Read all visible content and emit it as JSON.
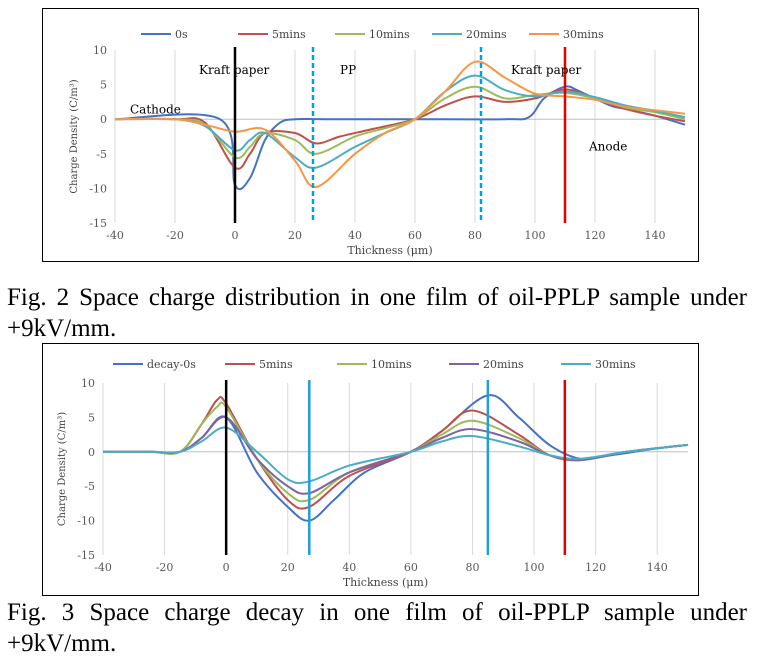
{
  "figure1": {
    "caption": "Fig. 2 Space charge distribution in one film of oil-PPLP sample under +9kV/mm.",
    "chart_data": {
      "type": "line",
      "xlabel": "Thickness (μm)",
      "ylabel": "Charge Density (C/m³)",
      "xlim": [
        -40,
        150
      ],
      "ylim": [
        -15,
        10
      ],
      "xticks": [
        -40,
        -20,
        0,
        20,
        40,
        60,
        80,
        100,
        120,
        140
      ],
      "yticks": [
        10,
        5,
        0,
        -5,
        -10,
        -15
      ],
      "grid": "vertical",
      "legend": "top",
      "series": [
        {
          "name": "0s",
          "color": "#4472C4",
          "points": [
            [
              -40,
              0
            ],
            [
              -5,
              0
            ],
            [
              0,
              -9.5
            ],
            [
              5,
              -8.5
            ],
            [
              10,
              -3
            ],
            [
              15,
              -0.5
            ],
            [
              20,
              0
            ],
            [
              30,
              0
            ],
            [
              60,
              0
            ],
            [
              90,
              0
            ],
            [
              98,
              0.3
            ],
            [
              103,
              3
            ],
            [
              110,
              4.7
            ],
            [
              115,
              4
            ],
            [
              125,
              2
            ],
            [
              130,
              1.5
            ],
            [
              140,
              0.5
            ],
            [
              150,
              -0.8
            ]
          ]
        },
        {
          "name": "5mins",
          "color": "#C0504D",
          "points": [
            [
              -40,
              0
            ],
            [
              -20,
              0
            ],
            [
              -10,
              -0.5
            ],
            [
              0,
              -7
            ],
            [
              5,
              -5
            ],
            [
              10,
              -2
            ],
            [
              20,
              -2
            ],
            [
              27,
              -3.5
            ],
            [
              35,
              -2.5
            ],
            [
              45,
              -1.5
            ],
            [
              60,
              0
            ],
            [
              70,
              2
            ],
            [
              80,
              3.3
            ],
            [
              90,
              2.5
            ],
            [
              100,
              3
            ],
            [
              110,
              4.3
            ],
            [
              120,
              3
            ],
            [
              130,
              1.5
            ],
            [
              140,
              0.5
            ],
            [
              150,
              -0.3
            ]
          ]
        },
        {
          "name": "10mins",
          "color": "#9BBB59",
          "points": [
            [
              -40,
              0
            ],
            [
              -20,
              0
            ],
            [
              -10,
              -0.8
            ],
            [
              0,
              -5.5
            ],
            [
              5,
              -4
            ],
            [
              10,
              -2
            ],
            [
              20,
              -3
            ],
            [
              27,
              -5
            ],
            [
              40,
              -2.5
            ],
            [
              50,
              -1.3
            ],
            [
              60,
              0
            ],
            [
              70,
              3
            ],
            [
              80,
              4.7
            ],
            [
              90,
              3
            ],
            [
              100,
              3.5
            ],
            [
              110,
              3.8
            ],
            [
              120,
              3
            ],
            [
              130,
              1.7
            ],
            [
              140,
              1
            ],
            [
              150,
              0
            ]
          ]
        },
        {
          "name": "20mins",
          "color": "#4BACC6",
          "points": [
            [
              -40,
              0
            ],
            [
              -20,
              0
            ],
            [
              -10,
              -1
            ],
            [
              0,
              -4.5
            ],
            [
              5,
              -3
            ],
            [
              10,
              -2
            ],
            [
              20,
              -5.5
            ],
            [
              27,
              -7
            ],
            [
              40,
              -4
            ],
            [
              50,
              -2
            ],
            [
              60,
              0
            ],
            [
              70,
              4
            ],
            [
              80,
              6.3
            ],
            [
              90,
              4.2
            ],
            [
              100,
              3.3
            ],
            [
              110,
              4
            ],
            [
              120,
              3.2
            ],
            [
              130,
              2
            ],
            [
              140,
              1.2
            ],
            [
              150,
              0.3
            ]
          ]
        },
        {
          "name": "30mins",
          "color": "#F79646",
          "points": [
            [
              -40,
              0
            ],
            [
              -20,
              0
            ],
            [
              -10,
              -0.8
            ],
            [
              0,
              -1.8
            ],
            [
              10,
              -1.5
            ],
            [
              20,
              -6
            ],
            [
              27,
              -9.8
            ],
            [
              40,
              -5
            ],
            [
              50,
              -2
            ],
            [
              60,
              0
            ],
            [
              70,
              4
            ],
            [
              80,
              8.3
            ],
            [
              90,
              6
            ],
            [
              100,
              3.7
            ],
            [
              110,
              3.3
            ],
            [
              120,
              2.8
            ],
            [
              130,
              1.8
            ],
            [
              140,
              1.3
            ],
            [
              150,
              0.8
            ]
          ]
        }
      ],
      "markers": [
        {
          "x": 0,
          "color": "#000000",
          "style": "solid"
        },
        {
          "x": 26,
          "color": "#00A0E0",
          "style": "dashed"
        },
        {
          "x": 82,
          "color": "#00A0E0",
          "style": "dashed"
        },
        {
          "x": 110,
          "color": "#E00000",
          "style": "solid"
        }
      ],
      "annotations": [
        {
          "text": "Cathode",
          "x": -35,
          "y": 0.8
        },
        {
          "text": "Kraft paper",
          "x": -12,
          "y": 6.5
        },
        {
          "text": "PP",
          "x": 35,
          "y": 6.5
        },
        {
          "text": "Kraft paper",
          "x": 92,
          "y": 6.5
        },
        {
          "text": "Anode",
          "x": 118,
          "y": -4.5
        }
      ]
    }
  },
  "figure2": {
    "caption": "Fig. 3 Space charge decay in one film of oil-PPLP sample under +9kV/mm.",
    "chart_data": {
      "type": "line",
      "xlabel": "Thickness (μm)",
      "ylabel": "Charge Density (C/m³)",
      "xlim": [
        -40,
        150
      ],
      "ylim": [
        -15,
        10
      ],
      "xticks": [
        -40,
        -20,
        0,
        20,
        40,
        60,
        80,
        100,
        120,
        140
      ],
      "yticks": [
        10,
        5,
        0,
        -5,
        -10,
        -15
      ],
      "grid": "vertical",
      "legend": "top",
      "series": [
        {
          "name": "decay-0s",
          "color": "#4472C4",
          "points": [
            [
              -40,
              0
            ],
            [
              -25,
              0
            ],
            [
              -15,
              0
            ],
            [
              -8,
              2
            ],
            [
              0,
              5
            ],
            [
              10,
              -3
            ],
            [
              20,
              -8
            ],
            [
              27,
              -10
            ],
            [
              35,
              -7
            ],
            [
              45,
              -3
            ],
            [
              60,
              0
            ],
            [
              70,
              3
            ],
            [
              85,
              8.2
            ],
            [
              95,
              5
            ],
            [
              105,
              1
            ],
            [
              115,
              -1
            ],
            [
              125,
              -0.5
            ],
            [
              140,
              0.5
            ],
            [
              150,
              1
            ]
          ]
        },
        {
          "name": "5mins",
          "color": "#C0504D",
          "points": [
            [
              -40,
              0
            ],
            [
              -25,
              0
            ],
            [
              -15,
              0
            ],
            [
              -8,
              4
            ],
            [
              -3,
              7.5
            ],
            [
              0,
              7
            ],
            [
              10,
              -1
            ],
            [
              20,
              -7
            ],
            [
              27,
              -8
            ],
            [
              40,
              -3.5
            ],
            [
              60,
              0
            ],
            [
              70,
              3
            ],
            [
              80,
              6
            ],
            [
              95,
              2.5
            ],
            [
              105,
              -0.5
            ],
            [
              115,
              -1.2
            ],
            [
              130,
              0
            ],
            [
              150,
              1
            ]
          ]
        },
        {
          "name": "10mins",
          "color": "#9BBB59",
          "points": [
            [
              -40,
              0
            ],
            [
              -25,
              0
            ],
            [
              -15,
              0
            ],
            [
              -8,
              4
            ],
            [
              -3,
              6.5
            ],
            [
              0,
              6.5
            ],
            [
              10,
              -1
            ],
            [
              20,
              -6
            ],
            [
              27,
              -7
            ],
            [
              40,
              -3
            ],
            [
              60,
              0
            ],
            [
              70,
              2.5
            ],
            [
              80,
              4.5
            ],
            [
              95,
              2
            ],
            [
              105,
              -0.5
            ],
            [
              115,
              -1.2
            ],
            [
              130,
              0
            ],
            [
              150,
              1
            ]
          ]
        },
        {
          "name": "20mins",
          "color": "#8064A2",
          "points": [
            [
              -40,
              0
            ],
            [
              -25,
              0
            ],
            [
              -15,
              0
            ],
            [
              -8,
              2
            ],
            [
              0,
              5
            ],
            [
              10,
              -1
            ],
            [
              20,
              -5
            ],
            [
              27,
              -6
            ],
            [
              40,
              -3
            ],
            [
              60,
              0
            ],
            [
              70,
              2
            ],
            [
              80,
              3.3
            ],
            [
              95,
              1.5
            ],
            [
              105,
              -0.5
            ],
            [
              115,
              -1.2
            ],
            [
              130,
              0
            ],
            [
              150,
              1
            ]
          ]
        },
        {
          "name": "30mins",
          "color": "#4BACC6",
          "points": [
            [
              -40,
              0
            ],
            [
              -25,
              0
            ],
            [
              -15,
              0
            ],
            [
              -8,
              1.5
            ],
            [
              0,
              3.5
            ],
            [
              10,
              0
            ],
            [
              20,
              -4
            ],
            [
              27,
              -4.3
            ],
            [
              40,
              -2
            ],
            [
              60,
              0
            ],
            [
              70,
              1.5
            ],
            [
              80,
              2.3
            ],
            [
              95,
              0.8
            ],
            [
              105,
              -0.5
            ],
            [
              115,
              -1
            ],
            [
              130,
              0
            ],
            [
              150,
              1
            ]
          ]
        }
      ],
      "markers": [
        {
          "x": 0,
          "color": "#000000",
          "style": "solid"
        },
        {
          "x": 27,
          "color": "#1BA1D8",
          "style": "solid"
        },
        {
          "x": 85,
          "color": "#1BA1D8",
          "style": "solid"
        },
        {
          "x": 110,
          "color": "#E00000",
          "style": "solid"
        }
      ],
      "annotations": []
    }
  }
}
